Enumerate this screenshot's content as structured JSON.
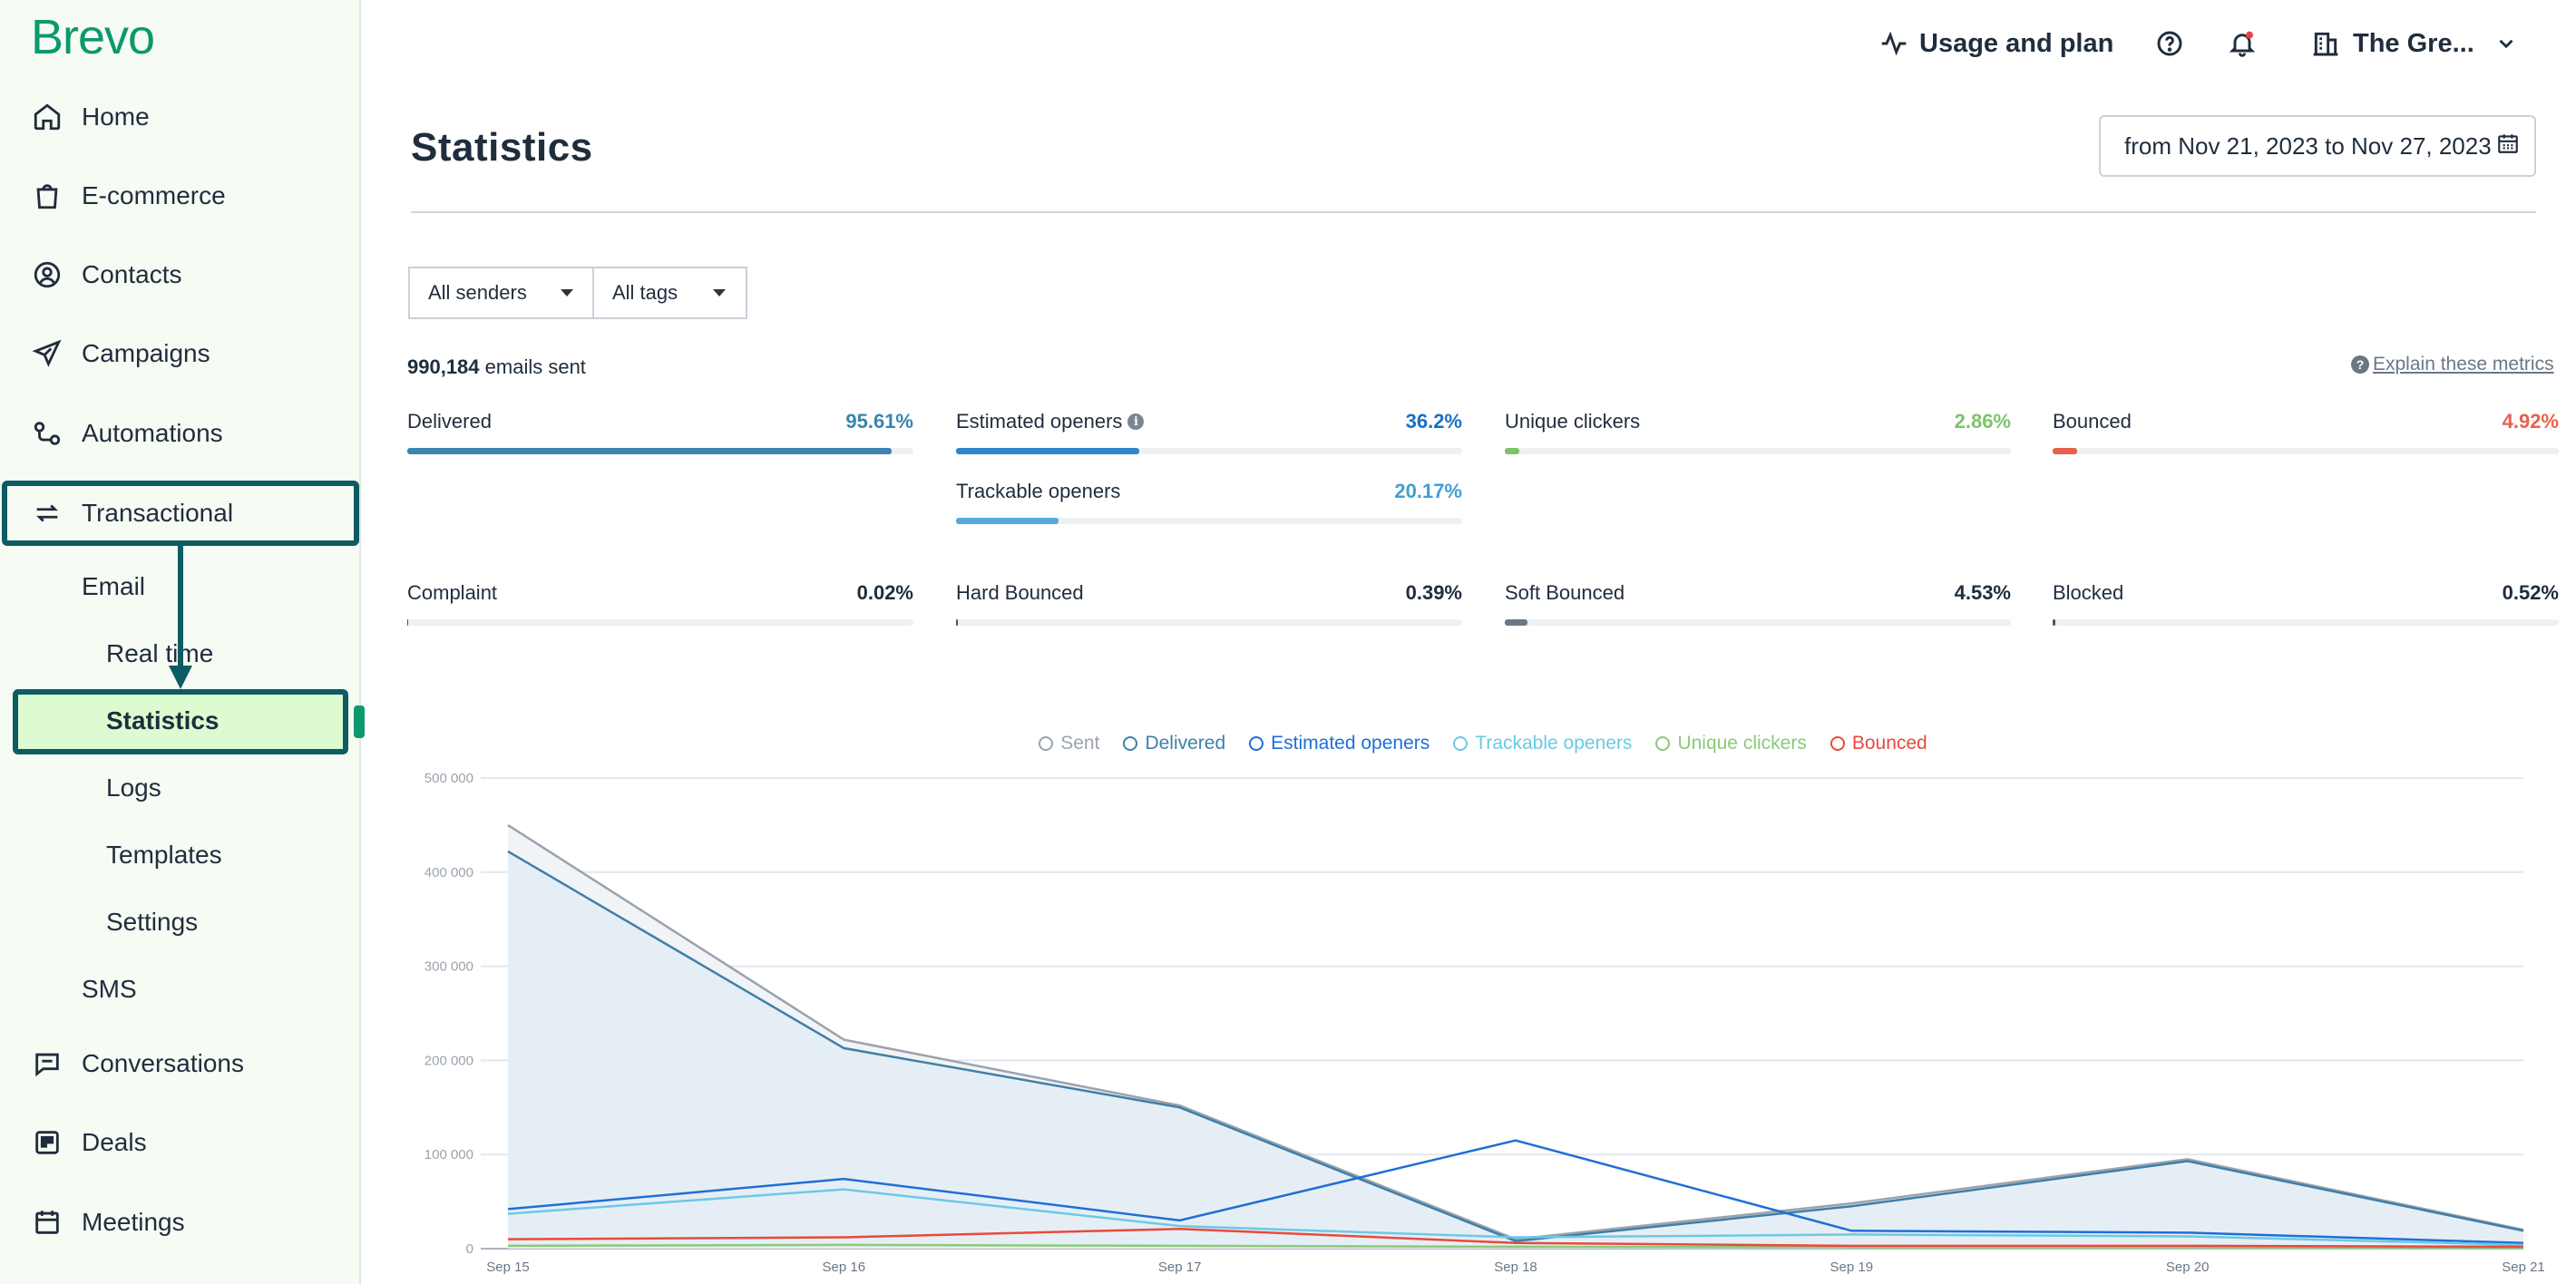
{
  "app": {
    "brand": "Brevo"
  },
  "sidebar": {
    "items": [
      {
        "label": "Home",
        "icon": "home-icon"
      },
      {
        "label": "E-commerce",
        "icon": "shopping-bag-icon"
      },
      {
        "label": "Contacts",
        "icon": "contacts-icon"
      },
      {
        "label": "Campaigns",
        "icon": "send-icon"
      },
      {
        "label": "Automations",
        "icon": "automation-icon"
      },
      {
        "label": "Transactional",
        "icon": "transactional-icon"
      },
      {
        "label": "Conversations",
        "icon": "conversations-icon"
      },
      {
        "label": "Deals",
        "icon": "deals-icon"
      },
      {
        "label": "Meetings",
        "icon": "calendar-icon"
      }
    ],
    "transactional_sub": {
      "email": "Email",
      "email_children": [
        "Real time",
        "Statistics",
        "Logs",
        "Templates",
        "Settings"
      ],
      "sms": "SMS"
    }
  },
  "header": {
    "usage_label": "Usage and plan",
    "account_label": "The Gre..."
  },
  "page": {
    "title": "Statistics",
    "date_range": "from Nov 21, 2023 to Nov 27, 2023"
  },
  "filters": {
    "senders": "All senders",
    "tags": "All tags"
  },
  "summary": {
    "emails_sent_count": "990,184",
    "emails_sent_suffix": " emails sent",
    "explain_link": "Explain these metrics"
  },
  "metrics": [
    {
      "label": "Delivered",
      "value": "95.61%",
      "percent": 95.61,
      "color": "#3a84b0",
      "value_color": "#3a84b0"
    },
    {
      "label": "Estimated openers",
      "value": "36.2%",
      "percent": 36.2,
      "color": "#2f86c7",
      "value_color": "#1a6fc4",
      "info": true
    },
    {
      "label": "Unique clickers",
      "value": "2.86%",
      "percent": 2.86,
      "color": "#7cc36a",
      "value_color": "#7cc36a"
    },
    {
      "label": "Bounced",
      "value": "4.92%",
      "percent": 4.92,
      "color": "#e8604c",
      "value_color": "#e8604c"
    },
    {
      "label": "Trackable openers",
      "value": "20.17%",
      "percent": 20.17,
      "color": "#58a9da",
      "value_color": "#3f9fd6"
    },
    {
      "label": "Complaint",
      "value": "0.02%",
      "percent": 0.02,
      "color": "#4a5563",
      "value_color": "#1f2d3d"
    },
    {
      "label": "Hard Bounced",
      "value": "0.39%",
      "percent": 0.39,
      "color": "#4a5563",
      "value_color": "#1f2d3d"
    },
    {
      "label": "Soft Bounced",
      "value": "4.53%",
      "percent": 4.53,
      "color": "#6b7785",
      "value_color": "#1f2d3d"
    },
    {
      "label": "Blocked",
      "value": "0.52%",
      "percent": 0.52,
      "color": "#4a5563",
      "value_color": "#1f2d3d"
    }
  ],
  "chart_data": {
    "type": "line",
    "categories": [
      "Sep 15",
      "Sep 16",
      "Sep 17",
      "Sep 18",
      "Sep 19",
      "Sep 20",
      "Sep 21"
    ],
    "ylim": [
      0,
      500000
    ],
    "yticks": [
      "0",
      "100 000",
      "200 000",
      "300 000",
      "400 000",
      "500 000"
    ],
    "ytick_values": [
      0,
      100000,
      200000,
      300000,
      400000,
      500000
    ],
    "series": [
      {
        "name": "Sent",
        "color": "#9aa3ad",
        "fill": "#f1f3f6",
        "values": [
          450000,
          222000,
          152000,
          10000,
          48000,
          95000,
          20000
        ]
      },
      {
        "name": "Delivered",
        "color": "#3f7fa8",
        "fill": "#e6eef5",
        "values": [
          422000,
          213000,
          150000,
          8000,
          45000,
          93000,
          19000
        ]
      },
      {
        "name": "Estimated openers",
        "color": "#1f6fd6",
        "values": [
          42000,
          74000,
          30000,
          115000,
          19000,
          17000,
          6000
        ]
      },
      {
        "name": "Trackable openers",
        "color": "#6cc9e6",
        "values": [
          37000,
          63000,
          24000,
          12000,
          15000,
          13000,
          4000
        ]
      },
      {
        "name": "Unique clickers",
        "color": "#8bc97a",
        "values": [
          3000,
          4000,
          3000,
          2000,
          1500,
          1500,
          1000
        ]
      },
      {
        "name": "Bounced",
        "color": "#e84a3c",
        "values": [
          10000,
          12000,
          21000,
          6000,
          3000,
          3000,
          2000
        ]
      }
    ]
  }
}
